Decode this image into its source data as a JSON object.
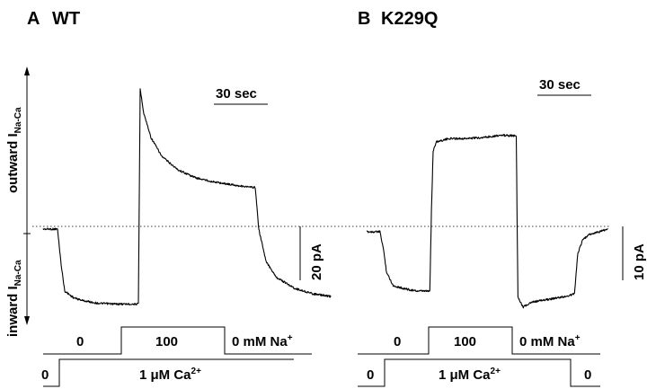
{
  "panels": [
    {
      "letter": "A",
      "name": "WT",
      "time_scale_label": "30 sec",
      "current_scale_label": "20 pA",
      "na_labels": [
        "0",
        "100",
        "0 mM Na"
      ],
      "na_superscript": "+",
      "ca_labels": [
        "0",
        "1 μM Ca"
      ],
      "ca_superscript": "2+"
    },
    {
      "letter": "B",
      "name": "K229Q",
      "time_scale_label": "30 sec",
      "current_scale_label": "10 pA",
      "na_labels": [
        "0",
        "100",
        "0 mM Na"
      ],
      "na_superscript": "+",
      "ca_labels": [
        "0",
        "1 μM Ca",
        "0"
      ],
      "ca_superscript": "2+"
    }
  ],
  "axis_labels": {
    "outward_prefix": "outward I",
    "inward_prefix": "inward I",
    "subscript": "Na-Ca"
  },
  "chart_data": [
    {
      "type": "line",
      "panel": "A WT",
      "x_unit": "sec",
      "y_unit": "pA",
      "scale_bars": {
        "time_sec": 30,
        "current_pA": 20
      },
      "series": [
        {
          "x": [
            0,
            8,
            10,
            12,
            17,
            22,
            30,
            40,
            53,
            54,
            56,
            60,
            66,
            75,
            85,
            95,
            105,
            115,
            118,
            120,
            124,
            130,
            140,
            150,
            160
          ],
          "y": [
            -1,
            -1,
            -14,
            -24,
            -26.5,
            -27.5,
            -28.5,
            -28.8,
            -28.8,
            51,
            42,
            33,
            26,
            21,
            18,
            16.5,
            15.5,
            14.5,
            14.5,
            -1,
            -13,
            -19,
            -23,
            -25,
            -26
          ]
        }
      ],
      "solution_protocol": {
        "na_mM": [
          {
            "from": 0,
            "to": 53,
            "value": 0
          },
          {
            "from": 53,
            "to": 118,
            "value": 100
          },
          {
            "from": 118,
            "to": 160,
            "value": 0
          }
        ],
        "ca_uM": [
          {
            "from": 0,
            "to": 8,
            "value": 0
          },
          {
            "from": 8,
            "to": 160,
            "value": 1
          }
        ]
      }
    },
    {
      "type": "line",
      "panel": "B K229Q",
      "x_unit": "sec",
      "y_unit": "pA",
      "scale_bars": {
        "time_sec": 30,
        "current_pA": 10
      },
      "series": [
        {
          "x": [
            0,
            8,
            10,
            12,
            16,
            22,
            30,
            38,
            39,
            40,
            42,
            50,
            60,
            70,
            80,
            90,
            91,
            94,
            100,
            110,
            120,
            125,
            127,
            130,
            134,
            140,
            145
          ],
          "y": [
            -1,
            -1,
            -4,
            -8.5,
            -11,
            -11.5,
            -12,
            -12,
            3,
            14,
            15.7,
            16.3,
            16.3,
            16.5,
            16.9,
            16.8,
            -13,
            -15,
            -14,
            -13.5,
            -13,
            -12.5,
            -5,
            -2.5,
            -1.5,
            -1,
            -0.5
          ]
        }
      ],
      "solution_protocol": {
        "na_mM": [
          {
            "from": 0,
            "to": 39,
            "value": 0
          },
          {
            "from": 39,
            "to": 90,
            "value": 100
          },
          {
            "from": 90,
            "to": 145,
            "value": 0
          }
        ],
        "ca_uM": [
          {
            "from": 0,
            "to": 8,
            "value": 0
          },
          {
            "from": 8,
            "to": 126,
            "value": 1
          },
          {
            "from": 126,
            "to": 145,
            "value": 0
          }
        ]
      }
    }
  ]
}
